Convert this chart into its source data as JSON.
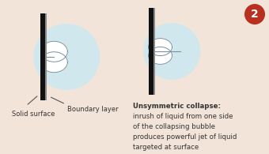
{
  "bg_color": "#f2e4d8",
  "wall_color": "#111111",
  "wall_highlight_color": "#888888",
  "bubble_glow_color": "#cce8f0",
  "bubble_white": "#ffffff",
  "bubble_outline": "#7a8fa0",
  "jet_color": "#7a8fa0",
  "text_color": "#333333",
  "annot_color": "#555555",
  "badge_bg": "#b83020",
  "badge_text_color": "#ffffff",
  "badge_label": "2",
  "solid_surface": "Solid surface",
  "boundary_layer": "Boundary layer",
  "desc_line0": "Unsymmetric collapse:",
  "desc_line1": "inrush of liquid from one side",
  "desc_line2": "of the collapsing bubble",
  "desc_line3": "produces powerful jet of liquid",
  "desc_line4": "targeted at surface"
}
